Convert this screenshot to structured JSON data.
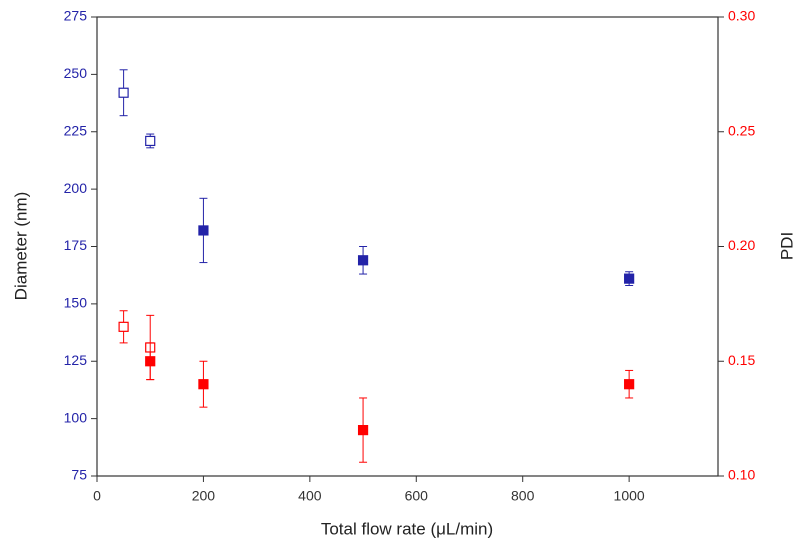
{
  "chart_data": {
    "type": "scatter",
    "x_label": "Total flow rate (μL/min)",
    "y_label": "Diameter (nm)",
    "y2_label": "PDI",
    "xlim": [
      0,
      1167
    ],
    "xticks": [
      0,
      200,
      400,
      600,
      800,
      1000
    ],
    "ylim": [
      75,
      275
    ],
    "yticks": [
      75,
      100,
      125,
      150,
      175,
      200,
      225,
      250,
      275
    ],
    "y_color": "#2323a8",
    "y2lim": [
      0.1,
      0.3
    ],
    "y2ticks": [
      {
        "value": 0.1,
        "label": "0.10"
      },
      0.15,
      {
        "value": 0.2,
        "label": "0.20"
      },
      0.25,
      {
        "value": 0.3,
        "label": "0.30"
      }
    ],
    "y2_color": "#ff0000",
    "series": [
      {
        "color": "#2323a8",
        "marker": "open",
        "x": [
          50,
          100
        ],
        "values": [
          242,
          221
        ],
        "errors": [
          10,
          3
        ]
      },
      {
        "color": "#2323a8",
        "marker": "filled",
        "x": [
          200,
          500,
          1000
        ],
        "values": [
          182,
          169,
          161
        ],
        "errors": [
          14,
          6,
          3
        ]
      },
      {
        "color": "#ff0000",
        "marker": "open",
        "axis": "y2",
        "x": [
          50,
          100
        ],
        "values": [
          0.165,
          0.156
        ],
        "errors": [
          0.007,
          0.014
        ]
      },
      {
        "color": "#ff0000",
        "marker": "filled",
        "axis": "y2",
        "x": [
          100,
          200,
          500,
          1000
        ],
        "values": [
          0.15,
          0.14,
          0.12,
          0.14
        ],
        "errors": [
          0.008,
          0.01,
          0.014,
          0.006
        ]
      }
    ]
  }
}
